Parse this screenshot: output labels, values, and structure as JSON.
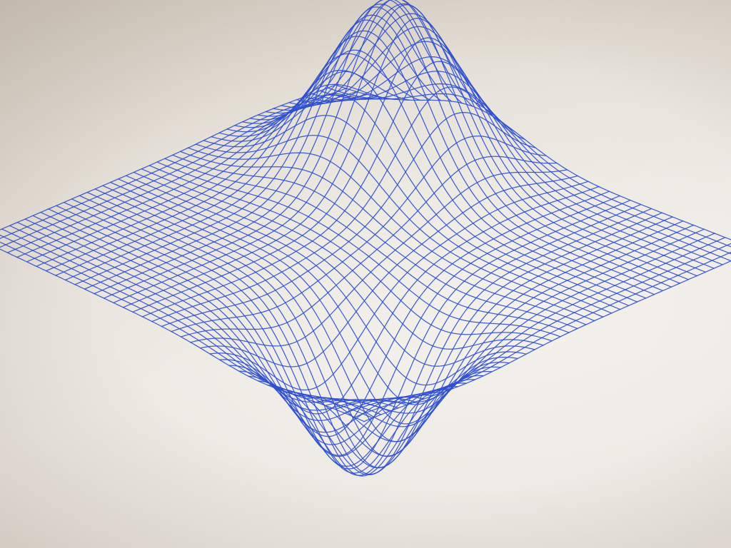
{
  "scene": {
    "subject": "pen-plotter-wireframe-surface",
    "ink_color": "#2f4fcf",
    "paper_color": "#ece8e1",
    "grid_lines_u": 47,
    "grid_lines_v": 41
  }
}
